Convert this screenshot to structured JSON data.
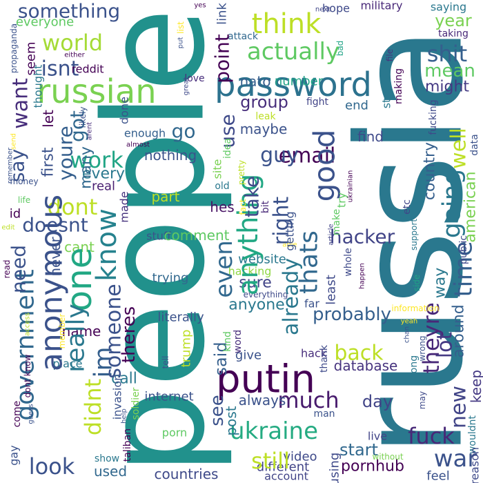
{
  "words": [
    "people",
    "russia",
    "something",
    "everyone",
    "russian",
    "password",
    "think",
    "actually",
    "world",
    "isnt",
    "shit",
    "mean",
    "might",
    "year",
    "taking",
    "saying",
    "military",
    "next",
    "yes",
    "hope",
    "group",
    "number",
    "nato",
    "reddit",
    "either",
    "attack",
    "maybe",
    "end",
    "leak",
    "fight",
    "email",
    "guy",
    "find",
    "love",
    "go",
    "work",
    "every",
    "real",
    "dont",
    "doesnt",
    "id",
    "cant",
    "nothing",
    "part",
    "hes",
    "stuff",
    "comment",
    "website",
    "hacker",
    "hacking",
    "everything",
    "trying",
    "literally",
    "sure",
    "anyone",
    "probably",
    "back",
    "database",
    "give",
    "putin",
    "much",
    "always",
    "day",
    "internet",
    "ukraine",
    "video",
    "live",
    "start",
    "pornhub",
    "different",
    "account",
    "countries",
    "still",
    "hack",
    "look",
    "name",
    "call",
    "used",
    "show",
    "porn",
    "place",
    "war",
    "fuck",
    "feel",
    "enough",
    "almost",
    "far",
    "able",
    "yeah",
    "anonymous",
    "government",
    "know",
    "one",
    "really",
    "didnt",
    "im",
    "someone",
    "theres",
    "youre",
    "got",
    "many",
    "need",
    "say",
    "first",
    "let",
    "want",
    "seem",
    "thought",
    "never",
    "made",
    "done",
    "point",
    "use",
    "see",
    "anything",
    "take",
    "even",
    "right",
    "thats",
    "good",
    "already",
    "said",
    "post",
    "least",
    "try",
    "make",
    "time",
    "going",
    "well",
    "american",
    "data",
    "fucking",
    "country",
    "way",
    "theyre",
    "lot",
    "new",
    "around",
    "keep",
    "stop",
    "making",
    "file",
    "etc",
    "support",
    "side",
    "public",
    "may",
    "long",
    "wouldnt",
    "reason",
    "without",
    "soldier",
    "taliban",
    "help",
    "using",
    "thank",
    "wrong",
    "information",
    "member",
    "access",
    "come",
    "gay",
    "dont know",
    "read",
    "edit",
    "life",
    "money",
    "send",
    "propaganda",
    "arent",
    "likely",
    "great",
    "idea",
    "pretty",
    "site",
    "old",
    "bit",
    "fact",
    "kind",
    "word",
    "tell",
    "man",
    "whole",
    "happen",
    "article",
    "chan",
    "list",
    "put",
    "link",
    "bad",
    "trump",
    "getting",
    "invasion",
    "guess",
    "remember",
    "ukrainian"
  ]
}
